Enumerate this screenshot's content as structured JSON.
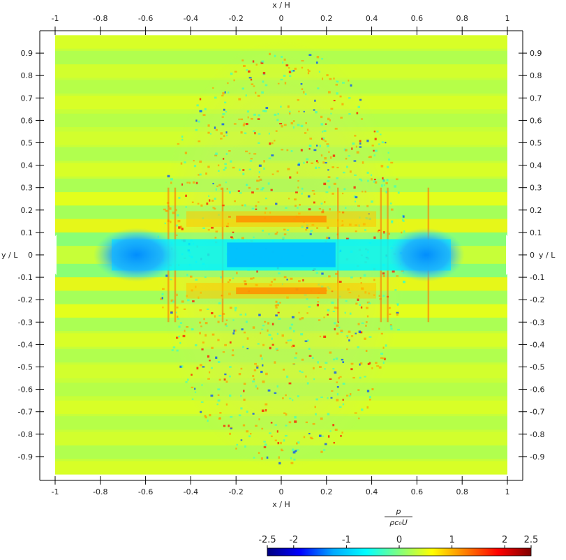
{
  "chart_data": {
    "type": "heatmap",
    "title": "",
    "xlabel": "x / H",
    "ylabel": "y / L",
    "xlim": [
      -1,
      1
    ],
    "ylim": [
      -1,
      1
    ],
    "x_ticks": [
      -1,
      -0.8,
      -0.6,
      -0.4,
      -0.2,
      0,
      0.2,
      0.4,
      0.6,
      0.8,
      1
    ],
    "y_ticks": [
      -0.9,
      -0.8,
      -0.7,
      -0.6,
      -0.5,
      -0.4,
      -0.3,
      -0.2,
      -0.1,
      0,
      0.1,
      0.2,
      0.3,
      0.4,
      0.5,
      0.6,
      0.7,
      0.8,
      0.9
    ],
    "grid": false,
    "colormap": "jet",
    "colorbar": {
      "label_numerator": "p",
      "label_denominator": "ρc₀U",
      "range": [
        -2.5,
        2.5
      ],
      "ticks": [
        -2.5,
        -2,
        -1,
        0,
        1,
        2,
        2.5
      ],
      "stops": [
        "#00007f",
        "#0000ff",
        "#00a8ff",
        "#00ffff",
        "#7fff7f",
        "#ffff00",
        "#ff7f00",
        "#ff0000",
        "#7f0000"
      ],
      "placement": "bottom-right"
    },
    "features": [
      {
        "name": "central low-pressure band",
        "x_range": [
          -0.75,
          0.75
        ],
        "y": 0,
        "value": -1.1
      },
      {
        "name": "upper high-pressure band",
        "x_range": [
          -0.2,
          0.2
        ],
        "y": 0.16,
        "value": 1.5
      },
      {
        "name": "lower high-pressure band",
        "x_range": [
          -0.2,
          0.2
        ],
        "y": -0.16,
        "value": 1.5
      }
    ]
  }
}
